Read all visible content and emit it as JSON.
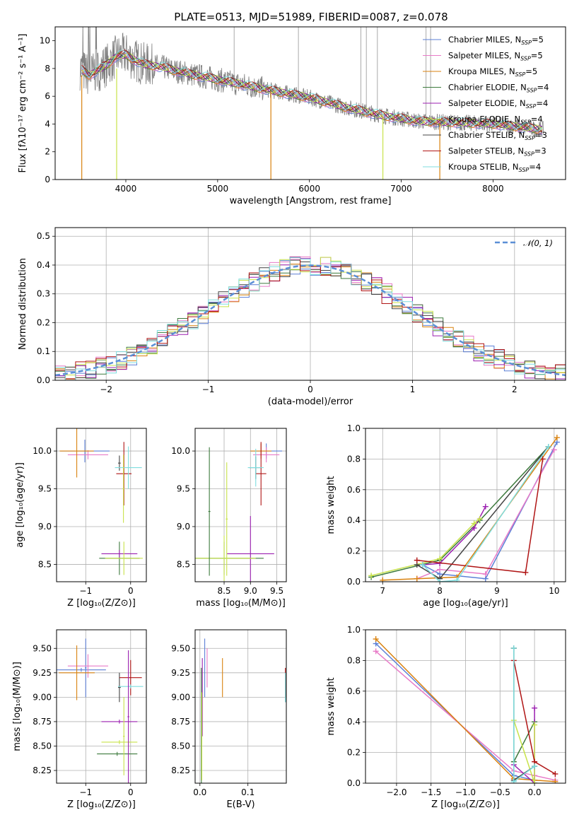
{
  "chart_data": [
    {
      "panel": "spectrum",
      "type": "line",
      "title": "PLATE=0513, MJD=51989, FIBERID=0087, z=0.078",
      "xlabel": "wavelength [Angstrom, rest frame]",
      "ylabel": "Flux [fλ10⁻¹⁷ erg cm⁻² s⁻¹ A⁻¹]",
      "xlim": [
        3230,
        8790
      ],
      "ylim": [
        0,
        11
      ],
      "xticks": [
        "4000",
        "5000",
        "6000",
        "7000",
        "8000"
      ],
      "yticks": [
        "0",
        "2",
        "4",
        "6",
        "8",
        "10"
      ],
      "grid": false,
      "legend": "upper-right",
      "data_color": "#808080",
      "continuum": {
        "x": [
          3500,
          3600,
          3700,
          3800,
          3900,
          4000,
          4100,
          4200,
          4300,
          4400,
          4500,
          4700,
          5000,
          5300,
          5600,
          6000,
          6400,
          6800,
          7200,
          7600,
          8000,
          8400,
          8550
        ],
        "y": [
          8.0,
          7.5,
          7.9,
          8.3,
          8.9,
          9.0,
          8.6,
          8.3,
          8.2,
          8.1,
          7.9,
          7.6,
          7.2,
          6.8,
          6.4,
          5.9,
          5.2,
          4.6,
          4.2,
          4.1,
          4.0,
          3.7,
          3.6
        ]
      },
      "series": [
        {
          "label_main": "Chabrier MILES, N",
          "label_sub": "SSP",
          "label_end": "=5",
          "color": "#5b7fd6"
        },
        {
          "label_main": "Salpeter MILES, N",
          "label_sub": "SSP",
          "label_end": "=5",
          "color": "#e87bc8"
        },
        {
          "label_main": "Kroupa MILES, N",
          "label_sub": "SSP",
          "label_end": "=5",
          "color": "#d9820f"
        },
        {
          "label_main": "Chabrier ELODIE, N",
          "label_sub": "SSP",
          "label_end": "=4",
          "color": "#3d7a3d"
        },
        {
          "label_main": "Salpeter ELODIE, N",
          "label_sub": "SSP",
          "label_end": "=4",
          "color": "#9b1fb0"
        },
        {
          "label_main": "Kroupa ELODIE, N",
          "label_sub": "SSP",
          "label_end": "=4",
          "color": "#c8e34a"
        },
        {
          "label_main": "Chabrier STELIB, N",
          "label_sub": "SSP",
          "label_end": "=3",
          "color": "#444444"
        },
        {
          "label_main": "Salpeter STELIB, N",
          "label_sub": "SSP",
          "label_end": "=3",
          "color": "#b01515"
        },
        {
          "label_main": "Kroupa STELIB, N",
          "label_sub": "SSP",
          "label_end": "=4",
          "color": "#7fdedf"
        }
      ]
    },
    {
      "panel": "residuals",
      "type": "step",
      "xlabel": "(data-model)/error",
      "ylabel": "Normed distribution",
      "xlim": [
        -2.5,
        2.5
      ],
      "ylim": [
        0,
        0.53
      ],
      "xticks": [
        "−2",
        "−1",
        "0",
        "1",
        "2"
      ],
      "yticks": [
        "0.0",
        "0.1",
        "0.2",
        "0.3",
        "0.4",
        "0.5"
      ],
      "grid": true,
      "legend": "upper-right",
      "normal_label": "𝒩(0, 1)",
      "normal_color": "#5b8fd6"
    },
    {
      "panel": "age-vs-Z",
      "type": "errorbar",
      "xlabel": "Z [log₁₀(Z/Z⊙)]",
      "ylabel": "age  [log₁₀(age/yr)]",
      "xlim": [
        -1.65,
        0.35
      ],
      "ylim": [
        8.27,
        10.3
      ],
      "xticks": [
        "−1",
        "0"
      ],
      "yticks": [
        "8.5",
        "9.0",
        "9.5",
        "10.0"
      ],
      "grid": true,
      "points": [
        {
          "x": -1.02,
          "xerr": 0.55,
          "y": 10.0,
          "yerr": 0.15,
          "color": "#5b7fd6"
        },
        {
          "x": -0.95,
          "xerr": 0.45,
          "y": 9.95,
          "yerr": 0.06,
          "color": "#e87bc8"
        },
        {
          "x": -1.2,
          "xerr": 0.38,
          "y": 10.0,
          "yerr": 0.35,
          "color": "#d9820f"
        },
        {
          "x": -0.25,
          "xerr": 0.45,
          "y": 8.58,
          "yerr": 0.22,
          "color": "#3d7a3d"
        },
        {
          "x": -0.25,
          "xerr": 0.4,
          "y": 8.64,
          "yerr": 0.05,
          "color": "#9b1fb0"
        },
        {
          "x": -0.15,
          "xerr": 0.42,
          "y": 8.58,
          "yerr": 0.22,
          "color": "#c8e34a"
        },
        {
          "x": -0.25,
          "xerr": 0.03,
          "y": 9.84,
          "yerr": 0.1,
          "color": "#444444"
        },
        {
          "x": -0.15,
          "xerr": 0.17,
          "y": 9.7,
          "yerr": 0.42,
          "color": "#b01515"
        },
        {
          "x": -0.05,
          "xerr": 0.3,
          "y": 9.78,
          "yerr": 0.28,
          "color": "#7fdedf"
        },
        {
          "x": -0.16,
          "xerr": 0.02,
          "y": 9.5,
          "yerr": 0.45,
          "color": "#c8e34a"
        }
      ]
    },
    {
      "panel": "age-vs-mass",
      "type": "errorbar",
      "xlabel": "mass [log₁₀(M/M⊙)]",
      "xlim": [
        7.95,
        9.68
      ],
      "ylim": [
        8.27,
        10.3
      ],
      "xticks": [
        "8.5",
        "9.0",
        "9.5"
      ],
      "yticks": [
        "8.5",
        "9.0",
        "9.5",
        "10.0"
      ],
      "grid": true,
      "points": [
        {
          "x": 9.3,
          "xerr": 0.3,
          "y": 10.0,
          "yerr": 0.1,
          "color": "#5b7fd6"
        },
        {
          "x": 9.3,
          "xerr": 0.25,
          "y": 9.95,
          "yerr": 0.1,
          "color": "#e87bc8"
        },
        {
          "x": 9.2,
          "xerr": 0.2,
          "y": 10.0,
          "yerr": 0.1,
          "color": "#d9820f"
        },
        {
          "x": 8.5,
          "xerr": 0.75,
          "y": 8.58,
          "yerr": 0.22,
          "color": "#3d7a3d"
        },
        {
          "x": 9.0,
          "xerr": 0.45,
          "y": 8.64,
          "yerr": 0.5,
          "color": "#9b1fb0"
        },
        {
          "x": 8.5,
          "xerr": 0.6,
          "y": 8.58,
          "yerr": 0.3,
          "color": "#c8e34a"
        },
        {
          "x": 9.1,
          "xerr": 0.12,
          "y": 9.78,
          "yerr": 0.15,
          "color": "#444444"
        },
        {
          "x": 9.2,
          "xerr": 0.1,
          "y": 9.7,
          "yerr": 0.42,
          "color": "#b01515"
        },
        {
          "x": 9.1,
          "xerr": 0.15,
          "y": 9.78,
          "yerr": 0.25,
          "color": "#7fdedf"
        },
        {
          "x": 8.22,
          "xerr": 0.02,
          "y": 9.2,
          "yerr": 0.85,
          "color": "#3d7a3d"
        },
        {
          "x": 8.55,
          "xerr": 0.02,
          "y": 9.1,
          "yerr": 0.75,
          "color": "#c8e34a"
        }
      ]
    },
    {
      "panel": "weight-vs-age",
      "type": "line",
      "xlabel": "age  [log₁₀(age/yr)]",
      "ylabel": "mass weight",
      "xlim": [
        6.7,
        10.2
      ],
      "ylim": [
        0,
        1.0
      ],
      "xticks": [
        "7",
        "8",
        "9",
        "10"
      ],
      "yticks": [
        "0.0",
        "0.2",
        "0.4",
        "0.6",
        "0.8",
        "1.0"
      ],
      "grid": true,
      "series": [
        {
          "color": "#5b7fd6",
          "x": [
            7.7,
            8.0,
            8.8,
            10.05
          ],
          "y": [
            0.11,
            0.05,
            0.02,
            0.91
          ]
        },
        {
          "color": "#e87bc8",
          "x": [
            7.6,
            8.0,
            8.8,
            10.0
          ],
          "y": [
            0.02,
            0.08,
            0.05,
            0.86
          ]
        },
        {
          "color": "#d9820f",
          "x": [
            7.0,
            7.6,
            8.3,
            10.05
          ],
          "y": [
            0.01,
            0.02,
            0.03,
            0.94
          ]
        },
        {
          "color": "#3d7a3d",
          "x": [
            6.8,
            8.0,
            8.7,
            9.9
          ],
          "y": [
            0.03,
            0.14,
            0.4,
            0.88
          ]
        },
        {
          "color": "#9b1fb0",
          "x": [
            7.7,
            8.0,
            8.6,
            8.8
          ],
          "y": [
            0.11,
            0.12,
            0.35,
            0.49
          ]
        },
        {
          "color": "#c8e34a",
          "x": [
            6.8,
            8.0,
            8.6,
            8.7
          ],
          "y": [
            0.04,
            0.15,
            0.38,
            0.41
          ]
        },
        {
          "color": "#444444",
          "x": [
            7.6,
            8.0,
            9.9
          ],
          "y": [
            0.11,
            0.02,
            0.88
          ]
        },
        {
          "color": "#b01515",
          "x": [
            7.6,
            9.5,
            9.8
          ],
          "y": [
            0.14,
            0.06,
            0.8
          ]
        },
        {
          "color": "#7fdedf",
          "x": [
            7.7,
            8.0,
            8.3,
            9.9
          ],
          "y": [
            0.11,
            0.0,
            0.01,
            0.88
          ]
        }
      ]
    },
    {
      "panel": "mass-vs-Z",
      "type": "errorbar",
      "xlabel": "Z [log₁₀(Z/Z⊙)]",
      "ylabel": "mass [log₁₀(M/M⊙)]",
      "xlim": [
        -1.65,
        0.35
      ],
      "ylim": [
        8.12,
        9.69
      ],
      "xticks": [
        "−1",
        "0"
      ],
      "yticks": [
        "8.25",
        "8.50",
        "8.75",
        "9.00",
        "9.25",
        "9.50"
      ],
      "grid": true,
      "points": [
        {
          "x": -1.1,
          "xerr": 0.55,
          "y": 9.28,
          "yerr": 0.02,
          "color": "#5b7fd6"
        },
        {
          "x": -1.0,
          "xerr": 0.02,
          "y": 9.3,
          "yerr": 0.3,
          "color": "#5b7fd6"
        },
        {
          "x": -0.95,
          "xerr": 0.45,
          "y": 9.32,
          "yerr": 0.12,
          "color": "#e87bc8"
        },
        {
          "x": -1.2,
          "xerr": 0.4,
          "y": 9.25,
          "yerr": 0.28,
          "color": "#d9820f"
        },
        {
          "x": -0.3,
          "xerr": 0.45,
          "y": 8.42,
          "yerr": 0.02,
          "color": "#3d7a3d"
        },
        {
          "x": -0.25,
          "xerr": 0.4,
          "y": 8.75,
          "yerr": 0.02,
          "color": "#9b1fb0"
        },
        {
          "x": -0.25,
          "xerr": 0.4,
          "y": 8.54,
          "yerr": 0.02,
          "color": "#c8e34a"
        },
        {
          "x": -0.25,
          "xerr": 0.03,
          "y": 9.1,
          "yerr": 0.15,
          "color": "#444444"
        },
        {
          "x": 0.0,
          "xerr": 0.25,
          "y": 9.2,
          "yerr": 0.18,
          "color": "#b01515"
        },
        {
          "x": 0.0,
          "xerr": 0.28,
          "y": 9.11,
          "yerr": 0.02,
          "color": "#7fdedf"
        },
        {
          "x": -0.15,
          "xerr": 0.02,
          "y": 8.6,
          "yerr": 0.4,
          "color": "#c8e34a"
        },
        {
          "x": -0.05,
          "xerr": 0.02,
          "y": 8.8,
          "yerr": 0.68,
          "color": "#9b1fb0"
        }
      ]
    },
    {
      "panel": "mass-vs-ebv",
      "type": "errorbar",
      "xlabel": "E(B-V)",
      "xlim": [
        -0.01,
        0.18
      ],
      "ylim": [
        8.12,
        9.69
      ],
      "xticks": [
        "0.0",
        "0.1"
      ],
      "yticks": [
        "8.25",
        "8.50",
        "8.75",
        "9.00",
        "9.25",
        "9.50"
      ],
      "grid": true,
      "points": [
        {
          "x": 0.01,
          "xerr": 0.0,
          "y": 9.3,
          "yerr": 0.3,
          "color": "#5b7fd6"
        },
        {
          "x": 0.015,
          "xerr": 0.0,
          "y": 9.3,
          "yerr": 0.2,
          "color": "#e87bc8"
        },
        {
          "x": 0.047,
          "xerr": 0.0,
          "y": 9.2,
          "yerr": 0.2,
          "color": "#d9820f"
        },
        {
          "x": 0.003,
          "xerr": 0.0,
          "y": 8.6,
          "yerr": 0.7,
          "color": "#3d7a3d"
        },
        {
          "x": 0.005,
          "xerr": 0.0,
          "y": 9.0,
          "yerr": 0.4,
          "color": "#9b1fb0"
        },
        {
          "x": 0.004,
          "xerr": 0.0,
          "y": 8.6,
          "yerr": 0.45,
          "color": "#c8e34a"
        },
        {
          "x": 0.178,
          "xerr": 0.0,
          "y": 9.1,
          "yerr": 0.15,
          "color": "#444444"
        },
        {
          "x": 0.178,
          "xerr": 0.0,
          "y": 9.15,
          "yerr": 0.15,
          "color": "#b01515"
        },
        {
          "x": 0.178,
          "xerr": 0.0,
          "y": 9.1,
          "yerr": 0.15,
          "color": "#7fdedf"
        }
      ]
    },
    {
      "panel": "weight-vs-Z",
      "type": "line",
      "xlabel": "Z [log₁₀(Z/Z⊙)]",
      "ylabel": "mass weight",
      "xlim": [
        -2.45,
        0.45
      ],
      "ylim": [
        0,
        1.0
      ],
      "xticks": [
        "−2.0",
        "−1.5",
        "−1.0",
        "−0.5",
        "0.0"
      ],
      "yticks": [
        "0.0",
        "0.2",
        "0.4",
        "0.6",
        "0.8",
        "1.0"
      ],
      "grid": true,
      "series": [
        {
          "color": "#5b7fd6",
          "x": [
            -2.3,
            -0.3,
            0.0
          ],
          "y": [
            0.91,
            0.05,
            0.02
          ]
        },
        {
          "color": "#e87bc8",
          "x": [
            -2.3,
            -0.3,
            0.0,
            0.3
          ],
          "y": [
            0.86,
            0.08,
            0.05,
            0.02
          ]
        },
        {
          "color": "#d9820f",
          "x": [
            -2.3,
            -0.3,
            0.0,
            0.3
          ],
          "y": [
            0.94,
            0.03,
            0.02,
            0.01
          ]
        },
        {
          "color": "#3d7a3d",
          "x": [
            -0.3,
            -0.3,
            0.0
          ],
          "y": [
            0.88,
            0.14,
            0.4
          ]
        },
        {
          "color": "#9b1fb0",
          "x": [
            -0.3,
            0.0,
            0.0
          ],
          "y": [
            0.12,
            0.0,
            0.49
          ]
        },
        {
          "color": "#c8e34a",
          "x": [
            -0.3,
            0.0,
            0.0
          ],
          "y": [
            0.41,
            0.0,
            0.38
          ]
        },
        {
          "color": "#444444",
          "x": [
            -0.3,
            -0.3,
            0.0
          ],
          "y": [
            0.88,
            0.02,
            0.11
          ]
        },
        {
          "color": "#b01515",
          "x": [
            -0.3,
            0.0,
            0.3
          ],
          "y": [
            0.8,
            0.14,
            0.06
          ]
        },
        {
          "color": "#7fdedf",
          "x": [
            -0.3,
            -0.3,
            0.0
          ],
          "y": [
            0.88,
            0.01,
            0.11
          ]
        }
      ]
    }
  ]
}
